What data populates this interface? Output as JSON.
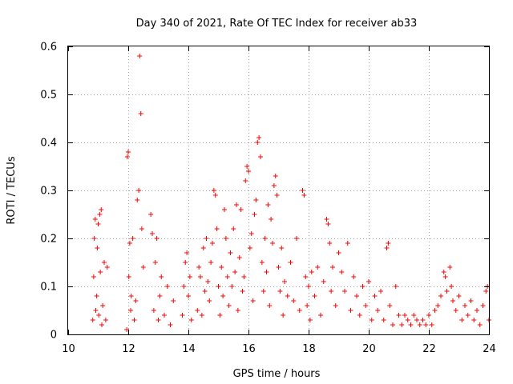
{
  "chart_data": {
    "type": "scatter",
    "title": "Day 340 of 2021, Rate Of TEC Index for receiver ab33",
    "xlabel": "GPS time / hours",
    "ylabel": "ROTI / TECUs",
    "xlim": [
      10,
      24
    ],
    "ylim": [
      0,
      0.6
    ],
    "xticks": [
      "10",
      "12",
      "14",
      "16",
      "18",
      "20",
      "22",
      "24"
    ],
    "yticks": [
      "0",
      "0.1",
      "0.2",
      "0.3",
      "0.4",
      "0.5",
      "0.6"
    ],
    "grid": true,
    "legend": "none",
    "marker": "+",
    "color": "#ff0000",
    "series": [
      {
        "points": [
          [
            10.82,
            0.03
          ],
          [
            10.85,
            0.12
          ],
          [
            10.87,
            0.2
          ],
          [
            10.9,
            0.24
          ],
          [
            10.92,
            0.05
          ],
          [
            10.95,
            0.08
          ],
          [
            10.97,
            0.18
          ],
          [
            11.0,
            0.23
          ],
          [
            11.02,
            0.04
          ],
          [
            11.05,
            0.25
          ],
          [
            11.07,
            0.13
          ],
          [
            11.1,
            0.26
          ],
          [
            11.12,
            0.02
          ],
          [
            11.15,
            0.06
          ],
          [
            11.2,
            0.15
          ],
          [
            11.25,
            0.03
          ],
          [
            11.3,
            0.14
          ],
          [
            11.95,
            0.01
          ],
          [
            11.97,
            0.37
          ],
          [
            12.0,
            0.38
          ],
          [
            12.02,
            0.12
          ],
          [
            12.05,
            0.19
          ],
          [
            12.08,
            0.05
          ],
          [
            12.1,
            0.08
          ],
          [
            12.15,
            0.2
          ],
          [
            12.2,
            0.03
          ],
          [
            12.25,
            0.07
          ],
          [
            12.3,
            0.28
          ],
          [
            12.35,
            0.3
          ],
          [
            12.38,
            0.58
          ],
          [
            12.42,
            0.46
          ],
          [
            12.45,
            0.22
          ],
          [
            12.5,
            0.14
          ],
          [
            12.75,
            0.25
          ],
          [
            12.8,
            0.21
          ],
          [
            12.85,
            0.05
          ],
          [
            12.9,
            0.15
          ],
          [
            12.95,
            0.2
          ],
          [
            13.0,
            0.03
          ],
          [
            13.05,
            0.08
          ],
          [
            13.1,
            0.12
          ],
          [
            13.2,
            0.04
          ],
          [
            13.3,
            0.1
          ],
          [
            13.4,
            0.02
          ],
          [
            13.5,
            0.07
          ],
          [
            13.8,
            0.04
          ],
          [
            13.85,
            0.1
          ],
          [
            13.9,
            0.15
          ],
          [
            13.95,
            0.17
          ],
          [
            14.0,
            0.08
          ],
          [
            14.05,
            0.12
          ],
          [
            14.1,
            0.03
          ],
          [
            14.3,
            0.05
          ],
          [
            14.35,
            0.14
          ],
          [
            14.4,
            0.12
          ],
          [
            14.45,
            0.04
          ],
          [
            14.5,
            0.18
          ],
          [
            14.55,
            0.09
          ],
          [
            14.6,
            0.2
          ],
          [
            14.65,
            0.11
          ],
          [
            14.7,
            0.07
          ],
          [
            14.75,
            0.15
          ],
          [
            14.8,
            0.19
          ],
          [
            14.85,
            0.3
          ],
          [
            14.9,
            0.29
          ],
          [
            14.95,
            0.22
          ],
          [
            15.0,
            0.1
          ],
          [
            15.05,
            0.04
          ],
          [
            15.1,
            0.14
          ],
          [
            15.15,
            0.08
          ],
          [
            15.2,
            0.26
          ],
          [
            15.25,
            0.2
          ],
          [
            15.3,
            0.12
          ],
          [
            15.35,
            0.06
          ],
          [
            15.4,
            0.17
          ],
          [
            15.45,
            0.1
          ],
          [
            15.5,
            0.22
          ],
          [
            15.55,
            0.13
          ],
          [
            15.6,
            0.27
          ],
          [
            15.65,
            0.05
          ],
          [
            15.7,
            0.16
          ],
          [
            15.75,
            0.26
          ],
          [
            15.8,
            0.09
          ],
          [
            15.85,
            0.12
          ],
          [
            15.9,
            0.32
          ],
          [
            15.95,
            0.35
          ],
          [
            16.0,
            0.34
          ],
          [
            16.05,
            0.18
          ],
          [
            16.1,
            0.21
          ],
          [
            16.15,
            0.07
          ],
          [
            16.2,
            0.25
          ],
          [
            16.25,
            0.28
          ],
          [
            16.3,
            0.4
          ],
          [
            16.35,
            0.41
          ],
          [
            16.4,
            0.37
          ],
          [
            16.45,
            0.15
          ],
          [
            16.5,
            0.09
          ],
          [
            16.55,
            0.2
          ],
          [
            16.6,
            0.13
          ],
          [
            16.65,
            0.27
          ],
          [
            16.7,
            0.06
          ],
          [
            16.75,
            0.24
          ],
          [
            16.8,
            0.19
          ],
          [
            16.85,
            0.31
          ],
          [
            16.9,
            0.33
          ],
          [
            16.95,
            0.29
          ],
          [
            17.0,
            0.14
          ],
          [
            17.05,
            0.09
          ],
          [
            17.1,
            0.18
          ],
          [
            17.15,
            0.04
          ],
          [
            17.2,
            0.11
          ],
          [
            17.3,
            0.08
          ],
          [
            17.4,
            0.15
          ],
          [
            17.5,
            0.07
          ],
          [
            17.6,
            0.2
          ],
          [
            17.7,
            0.05
          ],
          [
            17.8,
            0.3
          ],
          [
            17.85,
            0.29
          ],
          [
            17.9,
            0.12
          ],
          [
            17.95,
            0.06
          ],
          [
            18.0,
            0.1
          ],
          [
            18.05,
            0.03
          ],
          [
            18.1,
            0.13
          ],
          [
            18.2,
            0.08
          ],
          [
            18.3,
            0.14
          ],
          [
            18.4,
            0.04
          ],
          [
            18.5,
            0.11
          ],
          [
            18.6,
            0.24
          ],
          [
            18.65,
            0.23
          ],
          [
            18.7,
            0.19
          ],
          [
            18.75,
            0.09
          ],
          [
            18.8,
            0.14
          ],
          [
            18.9,
            0.06
          ],
          [
            19.0,
            0.17
          ],
          [
            19.1,
            0.13
          ],
          [
            19.2,
            0.09
          ],
          [
            19.3,
            0.19
          ],
          [
            19.4,
            0.05
          ],
          [
            19.5,
            0.12
          ],
          [
            19.6,
            0.08
          ],
          [
            19.7,
            0.04
          ],
          [
            19.8,
            0.1
          ],
          [
            19.9,
            0.06
          ],
          [
            20.0,
            0.11
          ],
          [
            20.1,
            0.03
          ],
          [
            20.2,
            0.08
          ],
          [
            20.3,
            0.05
          ],
          [
            20.4,
            0.09
          ],
          [
            20.5,
            0.03
          ],
          [
            20.6,
            0.18
          ],
          [
            20.65,
            0.19
          ],
          [
            20.7,
            0.06
          ],
          [
            20.8,
            0.02
          ],
          [
            20.9,
            0.1
          ],
          [
            21.0,
            0.04
          ],
          [
            21.1,
            0.02
          ],
          [
            21.2,
            0.04
          ],
          [
            21.3,
            0.03
          ],
          [
            21.4,
            0.02
          ],
          [
            21.5,
            0.04
          ],
          [
            21.6,
            0.03
          ],
          [
            21.7,
            0.02
          ],
          [
            21.8,
            0.03
          ],
          [
            21.9,
            0.02
          ],
          [
            22.0,
            0.04
          ],
          [
            22.1,
            0.02
          ],
          [
            22.2,
            0.05
          ],
          [
            22.3,
            0.06
          ],
          [
            22.4,
            0.08
          ],
          [
            22.5,
            0.13
          ],
          [
            22.55,
            0.12
          ],
          [
            22.6,
            0.09
          ],
          [
            22.7,
            0.14
          ],
          [
            22.75,
            0.1
          ],
          [
            22.8,
            0.07
          ],
          [
            22.9,
            0.05
          ],
          [
            23.0,
            0.08
          ],
          [
            23.1,
            0.03
          ],
          [
            23.2,
            0.06
          ],
          [
            23.3,
            0.04
          ],
          [
            23.4,
            0.07
          ],
          [
            23.5,
            0.03
          ],
          [
            23.6,
            0.05
          ],
          [
            23.7,
            0.02
          ],
          [
            23.8,
            0.06
          ],
          [
            23.9,
            0.09
          ],
          [
            23.95,
            0.1
          ],
          [
            24.0,
            0.03
          ]
        ]
      }
    ]
  }
}
